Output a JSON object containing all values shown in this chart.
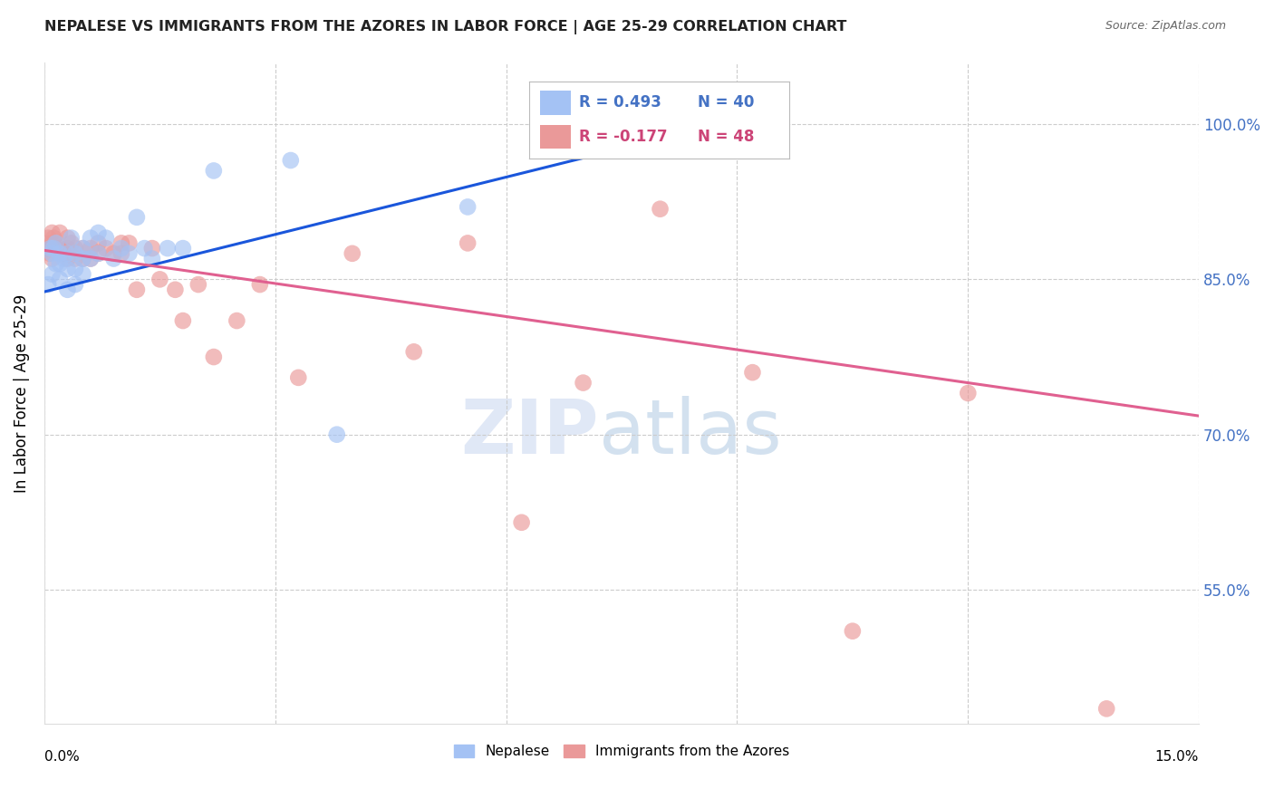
{
  "title": "NEPALESE VS IMMIGRANTS FROM THE AZORES IN LABOR FORCE | AGE 25-29 CORRELATION CHART",
  "source": "Source: ZipAtlas.com",
  "ylabel": "In Labor Force | Age 25-29",
  "yticks": [
    0.55,
    0.7,
    0.85,
    1.0
  ],
  "ytick_labels": [
    "55.0%",
    "70.0%",
    "85.0%",
    "100.0%"
  ],
  "xlim": [
    0.0,
    0.15
  ],
  "ylim": [
    0.42,
    1.06
  ],
  "legend_r_blue": "0.493",
  "legend_n_blue": "40",
  "legend_r_pink": "-0.177",
  "legend_n_pink": "48",
  "blue_color": "#a4c2f4",
  "pink_color": "#ea9999",
  "blue_line_color": "#1a56db",
  "pink_line_color": "#e06090",
  "nepalese_x": [
    0.0005,
    0.0008,
    0.001,
    0.001,
    0.0012,
    0.0015,
    0.0015,
    0.002,
    0.002,
    0.002,
    0.0025,
    0.003,
    0.003,
    0.003,
    0.0035,
    0.004,
    0.004,
    0.004,
    0.005,
    0.005,
    0.005,
    0.006,
    0.006,
    0.007,
    0.007,
    0.008,
    0.009,
    0.01,
    0.011,
    0.012,
    0.013,
    0.014,
    0.016,
    0.018,
    0.022,
    0.032,
    0.038,
    0.055,
    0.068,
    0.085
  ],
  "nepalese_y": [
    0.845,
    0.88,
    0.875,
    0.855,
    0.88,
    0.885,
    0.865,
    0.875,
    0.865,
    0.85,
    0.87,
    0.875,
    0.86,
    0.84,
    0.89,
    0.875,
    0.86,
    0.845,
    0.88,
    0.87,
    0.855,
    0.89,
    0.87,
    0.895,
    0.875,
    0.89,
    0.87,
    0.88,
    0.875,
    0.91,
    0.88,
    0.87,
    0.88,
    0.88,
    0.955,
    0.965,
    0.7,
    0.92,
    0.98,
    1.0
  ],
  "azores_x": [
    0.0003,
    0.0005,
    0.0007,
    0.001,
    0.001,
    0.001,
    0.0012,
    0.0015,
    0.002,
    0.002,
    0.0025,
    0.003,
    0.003,
    0.003,
    0.0035,
    0.004,
    0.004,
    0.005,
    0.005,
    0.006,
    0.006,
    0.007,
    0.007,
    0.008,
    0.009,
    0.01,
    0.01,
    0.011,
    0.012,
    0.014,
    0.015,
    0.017,
    0.018,
    0.02,
    0.022,
    0.025,
    0.028,
    0.033,
    0.04,
    0.048,
    0.055,
    0.062,
    0.07,
    0.08,
    0.092,
    0.105,
    0.12,
    0.138
  ],
  "azores_y": [
    0.88,
    0.89,
    0.875,
    0.895,
    0.885,
    0.87,
    0.89,
    0.88,
    0.895,
    0.88,
    0.875,
    0.89,
    0.88,
    0.87,
    0.885,
    0.88,
    0.87,
    0.88,
    0.87,
    0.88,
    0.87,
    0.885,
    0.875,
    0.88,
    0.875,
    0.885,
    0.875,
    0.885,
    0.84,
    0.88,
    0.85,
    0.84,
    0.81,
    0.845,
    0.775,
    0.81,
    0.845,
    0.755,
    0.875,
    0.78,
    0.885,
    0.615,
    0.75,
    0.918,
    0.76,
    0.51,
    0.74,
    0.435
  ],
  "blue_line_x": [
    0.0,
    0.085
  ],
  "blue_line_y": [
    0.838,
    0.995
  ],
  "pink_line_x": [
    0.0,
    0.15
  ],
  "pink_line_y": [
    0.878,
    0.718
  ]
}
